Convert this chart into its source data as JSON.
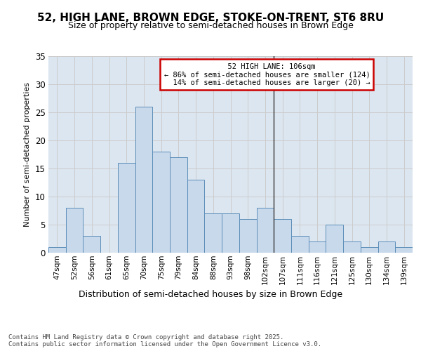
{
  "title": "52, HIGH LANE, BROWN EDGE, STOKE-ON-TRENT, ST6 8RU",
  "subtitle": "Size of property relative to semi-detached houses in Brown Edge",
  "xlabel": "Distribution of semi-detached houses by size in Brown Edge",
  "ylabel": "Number of semi-detached properties",
  "categories": [
    "47sqm",
    "52sqm",
    "56sqm",
    "61sqm",
    "65sqm",
    "70sqm",
    "75sqm",
    "79sqm",
    "84sqm",
    "88sqm",
    "93sqm",
    "98sqm",
    "102sqm",
    "107sqm",
    "111sqm",
    "116sqm",
    "121sqm",
    "125sqm",
    "130sqm",
    "134sqm",
    "139sqm"
  ],
  "values": [
    1,
    8,
    3,
    0,
    16,
    26,
    18,
    17,
    13,
    7,
    7,
    6,
    8,
    6,
    3,
    2,
    5,
    2,
    1,
    2,
    1
  ],
  "bar_color": "#c9d9ec",
  "bar_edge_color": "#5b8db8",
  "vline_index": 12.5,
  "marker_label": "52 HIGH LANE: 106sqm",
  "pct_smaller": 86,
  "n_smaller": 124,
  "pct_larger": 14,
  "n_larger": 20,
  "vline_color": "#333333",
  "box_edge_color": "#cc0000",
  "ylim": [
    0,
    35
  ],
  "yticks": [
    0,
    5,
    10,
    15,
    20,
    25,
    30,
    35
  ],
  "grid_color": "#cccccc",
  "bg_color": "#dce6f0",
  "footer1": "Contains HM Land Registry data © Crown copyright and database right 2025.",
  "footer2": "Contains public sector information licensed under the Open Government Licence v3.0."
}
